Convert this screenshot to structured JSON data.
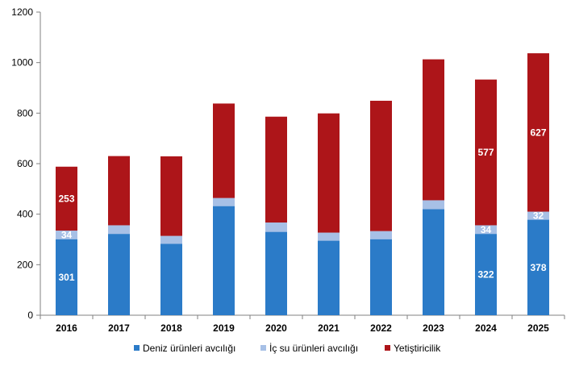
{
  "chart_data": {
    "type": "bar",
    "stacked": true,
    "categories": [
      "2016",
      "2017",
      "2018",
      "2019",
      "2020",
      "2021",
      "2022",
      "2023",
      "2024",
      "2025"
    ],
    "series": [
      {
        "name": "Deniz ürünleri avcılığı",
        "color": "#2b7bc8",
        "values": [
          301,
          322,
          283,
          432,
          330,
          295,
          301,
          420,
          322,
          378
        ],
        "labels": [
          "301",
          "",
          "",
          "",
          "",
          "",
          "",
          "",
          "322",
          "378"
        ]
      },
      {
        "name": "İç su ürünleri avcılığı",
        "color": "#a7c0e6",
        "values": [
          34,
          34,
          31,
          32,
          37,
          32,
          32,
          35,
          34,
          32
        ],
        "labels": [
          "34",
          "",
          "",
          "",
          "",
          "",
          "",
          "",
          "34",
          "32"
        ]
      },
      {
        "name": "Yetiştiricilik",
        "color": "#ad1519",
        "values": [
          253,
          274,
          315,
          374,
          419,
          472,
          516,
          558,
          577,
          627
        ],
        "labels": [
          "253",
          "",
          "",
          "",
          "",
          "",
          "",
          "",
          "577",
          "627"
        ]
      }
    ],
    "ylim": [
      0,
      1200
    ],
    "yticks": [
      0,
      200,
      400,
      600,
      800,
      1000,
      1200
    ],
    "grid": false,
    "legend_position": "bottom"
  }
}
